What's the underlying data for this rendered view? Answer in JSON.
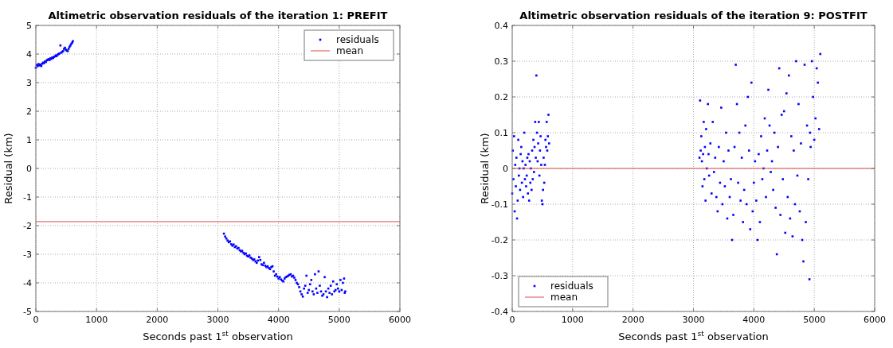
{
  "chart_data": [
    {
      "type": "scatter",
      "title": "Altimetric observation residuals of the iteration 1: PREFIT",
      "xlabel": "Seconds past 1$^{st}$ observation",
      "ylabel": "Residual (km)",
      "xlim": [
        0,
        6000
      ],
      "ylim": [
        -5,
        5
      ],
      "xticks": [
        0,
        1000,
        2000,
        3000,
        4000,
        5000,
        6000
      ],
      "yticks": [
        -5,
        -4,
        -3,
        -2,
        -1,
        0,
        1,
        2,
        3,
        4,
        5
      ],
      "grid": true,
      "legend": "top right",
      "series": [
        {
          "name": "residuals",
          "marker": "square",
          "color": "#0000ff",
          "x": [
            0,
            15,
            30,
            45,
            60,
            75,
            90,
            105,
            120,
            135,
            150,
            165,
            180,
            195,
            210,
            225,
            240,
            255,
            270,
            285,
            300,
            315,
            330,
            345,
            360,
            375,
            390,
            405,
            420,
            435,
            450,
            465,
            480,
            495,
            510,
            525,
            540,
            555,
            570,
            585,
            600,
            610,
            3100,
            3120,
            3140,
            3160,
            3180,
            3200,
            3220,
            3240,
            3260,
            3280,
            3300,
            3320,
            3340,
            3360,
            3380,
            3400,
            3420,
            3440,
            3460,
            3480,
            3500,
            3520,
            3540,
            3560,
            3580,
            3600,
            3620,
            3640,
            3660,
            3680,
            3700,
            3720,
            3740,
            3760,
            3780,
            3800,
            3820,
            3840,
            3860,
            3880,
            3900,
            3920,
            3940,
            3960,
            3980,
            4000,
            4020,
            4040,
            4060,
            4080,
            4100,
            4120,
            4140,
            4160,
            4180,
            4200,
            4220,
            4240,
            4260,
            4280,
            4300,
            4320,
            4340,
            4360,
            4380,
            4400,
            4420,
            4440,
            4460,
            4480,
            4500,
            4520,
            4540,
            4560,
            4580,
            4600,
            4620,
            4640,
            4660,
            4680,
            4700,
            4720,
            4740,
            4760,
            4780,
            4800,
            4820,
            4840,
            4860,
            4880,
            4900,
            4920,
            4940,
            4960,
            4980,
            5000,
            5020,
            5040,
            5060,
            5080,
            5090,
            5100
          ],
          "values": [
            3.52,
            3.62,
            3.58,
            3.65,
            3.6,
            3.63,
            3.58,
            3.66,
            3.7,
            3.68,
            3.74,
            3.72,
            3.78,
            3.8,
            3.82,
            3.79,
            3.85,
            3.83,
            3.88,
            3.86,
            3.9,
            3.92,
            3.95,
            3.93,
            3.98,
            4.0,
            4.02,
            4.3,
            4.05,
            4.08,
            4.1,
            4.18,
            4.22,
            4.15,
            4.12,
            4.1,
            4.18,
            4.25,
            4.3,
            4.36,
            4.4,
            4.45,
            -2.28,
            -2.38,
            -2.45,
            -2.52,
            -2.58,
            -2.55,
            -2.65,
            -2.7,
            -2.66,
            -2.75,
            -2.72,
            -2.8,
            -2.78,
            -2.86,
            -2.9,
            -2.88,
            -2.95,
            -3.0,
            -2.97,
            -3.05,
            -3.08,
            -3.04,
            -3.12,
            -3.15,
            -3.2,
            -3.18,
            -3.25,
            -3.3,
            -3.22,
            -3.1,
            -3.2,
            -3.35,
            -3.38,
            -3.3,
            -3.4,
            -3.45,
            -3.42,
            -3.48,
            -3.52,
            -3.45,
            -3.42,
            -3.6,
            -3.75,
            -3.7,
            -3.78,
            -3.85,
            -3.8,
            -3.88,
            -3.92,
            -3.95,
            -3.85,
            -3.8,
            -3.78,
            -3.75,
            -3.72,
            -3.7,
            -3.78,
            -3.75,
            -3.82,
            -3.9,
            -4.0,
            -4.05,
            -4.15,
            -4.3,
            -4.4,
            -4.48,
            -4.2,
            -4.1,
            -3.75,
            -4.35,
            -4.25,
            -4.05,
            -3.9,
            -4.3,
            -4.4,
            -3.7,
            -4.2,
            -4.35,
            -3.6,
            -4.1,
            -4.3,
            -4.45,
            -4.4,
            -3.8,
            -4.3,
            -4.5,
            -4.2,
            -4.35,
            -4.1,
            -4.4,
            -3.95,
            -4.3,
            -4.25,
            -4.05,
            -4.2,
            -4.3,
            -3.9,
            -4.25,
            -4.0,
            -3.85,
            -4.35,
            -4.3
          ]
        },
        {
          "name": "mean",
          "type": "line",
          "marker": "none",
          "color": "#d94a4a",
          "x": [
            0,
            6000
          ],
          "values": [
            -1.86,
            -1.86
          ]
        }
      ]
    },
    {
      "type": "scatter",
      "title": "Altimetric observation residuals of the iteration 9: POSTFIT",
      "xlabel": "Seconds past 1$^{st}$ observation",
      "ylabel": "Residual (km)",
      "xlim": [
        0,
        6000
      ],
      "ylim": [
        -0.4,
        0.4
      ],
      "xticks": [
        0,
        1000,
        2000,
        3000,
        4000,
        5000,
        6000
      ],
      "yticks": [
        -0.4,
        -0.3,
        -0.2,
        -0.1,
        0,
        0.1,
        0.2,
        0.3,
        0.4
      ],
      "grid": true,
      "legend": "bottom left",
      "series": [
        {
          "name": "residuals",
          "marker": "square",
          "color": "#0000ff",
          "x": [
            0,
            10,
            20,
            30,
            40,
            50,
            60,
            70,
            80,
            90,
            100,
            110,
            120,
            130,
            140,
            150,
            160,
            170,
            180,
            190,
            200,
            210,
            220,
            230,
            240,
            250,
            260,
            270,
            280,
            290,
            300,
            310,
            320,
            330,
            340,
            350,
            360,
            370,
            380,
            390,
            400,
            410,
            420,
            430,
            440,
            450,
            460,
            470,
            480,
            490,
            500,
            510,
            520,
            530,
            540,
            550,
            560,
            570,
            580,
            590,
            600,
            610,
            3100,
            3110,
            3120,
            3130,
            3140,
            3150,
            3160,
            3170,
            3180,
            3190,
            3200,
            3210,
            3220,
            3240,
            3250,
            3260,
            3280,
            3300,
            3320,
            3340,
            3360,
            3380,
            3400,
            3420,
            3440,
            3460,
            3480,
            3500,
            3520,
            3540,
            3560,
            3580,
            3600,
            3620,
            3640,
            3660,
            3680,
            3700,
            3720,
            3740,
            3760,
            3780,
            3800,
            3820,
            3840,
            3860,
            3880,
            3900,
            3920,
            3940,
            3960,
            3980,
            4000,
            4020,
            4040,
            4060,
            4080,
            4100,
            4120,
            4140,
            4160,
            4180,
            4200,
            4220,
            4240,
            4260,
            4280,
            4300,
            4320,
            4340,
            4360,
            4380,
            4400,
            4420,
            4440,
            4460,
            4480,
            4500,
            4520,
            4540,
            4560,
            4580,
            4600,
            4620,
            4640,
            4660,
            4680,
            4700,
            4720,
            4740,
            4760,
            4780,
            4800,
            4820,
            4840,
            4860,
            4880,
            4900,
            4920,
            4930,
            4940,
            4960,
            4980,
            5000,
            5020,
            5040,
            5060,
            5080,
            5100
          ],
          "values": [
            -0.07,
            0.05,
            -0.03,
            0.09,
            -0.12,
            0.01,
            -0.05,
            0.03,
            -0.14,
            -0.09,
            0.08,
            -0.02,
            0.0,
            -0.06,
            0.04,
            0.06,
            -0.04,
            0.02,
            -0.08,
            0.0,
            0.1,
            -0.03,
            0.01,
            -0.05,
            -0.02,
            0.03,
            -0.07,
            0.04,
            -0.09,
            0.02,
            -0.04,
            0.0,
            -0.06,
            0.05,
            -0.03,
            0.08,
            -0.01,
            0.06,
            0.13,
            0.03,
            0.26,
            0.1,
            0.02,
            0.07,
            0.13,
            -0.02,
            0.05,
            0.09,
            0.01,
            -0.09,
            -0.1,
            -0.06,
            0.03,
            -0.04,
            0.01,
            0.08,
            0.06,
            0.13,
            0.05,
            0.09,
            0.15,
            0.07,
            0.03,
            0.19,
            0.05,
            0.09,
            0.02,
            -0.05,
            0.04,
            0.13,
            -0.03,
            0.06,
            -0.09,
            0.11,
            0.0,
            0.18,
            0.04,
            -0.02,
            0.07,
            -0.07,
            0.13,
            -0.01,
            0.03,
            -0.08,
            -0.12,
            0.06,
            -0.04,
            0.17,
            -0.1,
            0.02,
            -0.05,
            0.1,
            -0.14,
            0.05,
            -0.08,
            -0.03,
            -0.2,
            -0.13,
            0.06,
            0.29,
            0.18,
            -0.04,
            0.1,
            -0.09,
            0.03,
            -0.15,
            -0.06,
            0.12,
            -0.1,
            0.2,
            0.05,
            -0.17,
            0.24,
            -0.12,
            -0.04,
            0.02,
            -0.09,
            -0.2,
            0.04,
            -0.15,
            0.09,
            -0.03,
            0.0,
            0.14,
            -0.08,
            0.05,
            0.22,
            0.12,
            -0.01,
            0.02,
            -0.06,
            0.1,
            -0.11,
            -0.24,
            0.06,
            0.28,
            -0.13,
            0.15,
            -0.03,
            0.16,
            -0.18,
            0.21,
            -0.08,
            0.26,
            -0.14,
            0.09,
            -0.19,
            0.05,
            -0.1,
            0.3,
            -0.02,
            0.18,
            -0.12,
            0.07,
            -0.2,
            -0.26,
            0.29,
            -0.15,
            0.12,
            -0.03,
            -0.31,
            0.1,
            0.06,
            0.3,
            0.2,
            0.08,
            0.14,
            0.28,
            0.24,
            0.11,
            0.32
          ]
        },
        {
          "name": "mean",
          "type": "line",
          "marker": "none",
          "color": "#d94a4a",
          "x": [
            0,
            6000
          ],
          "values": [
            0,
            0
          ]
        }
      ]
    }
  ]
}
